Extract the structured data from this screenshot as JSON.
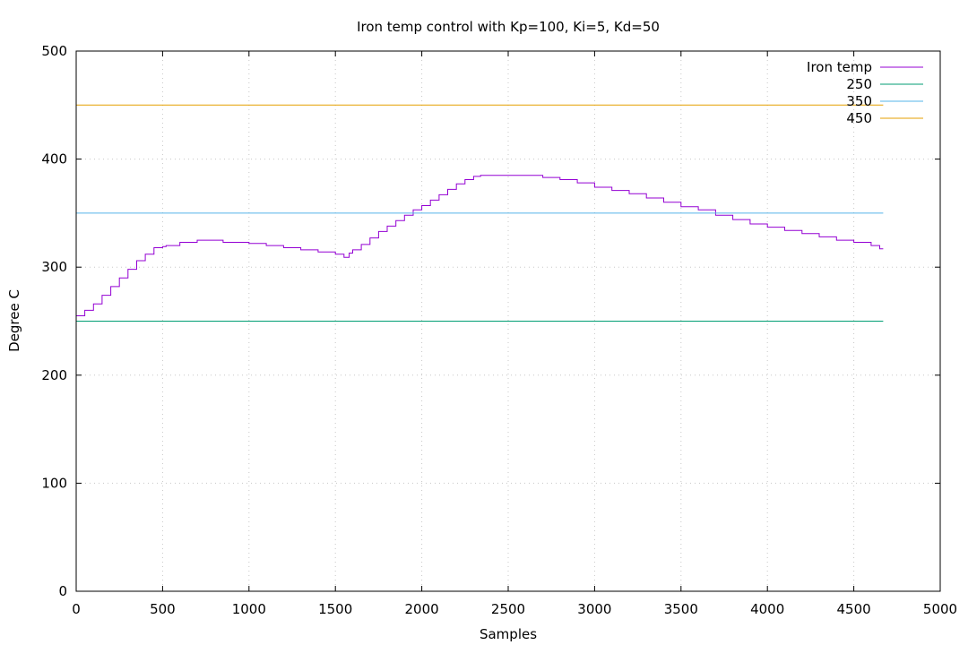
{
  "chart_data": {
    "type": "line",
    "title": "Iron temp control with Kp=100, Ki=5, Kd=50",
    "xlabel": "Samples",
    "ylabel": "Degree C",
    "xlim": [
      0,
      5000
    ],
    "ylim": [
      0,
      500
    ],
    "x_ticks": [
      0,
      500,
      1000,
      1500,
      2000,
      2500,
      3000,
      3500,
      4000,
      4500,
      5000
    ],
    "y_ticks": [
      0,
      100,
      200,
      300,
      400,
      500
    ],
    "grid": true,
    "legend_position": "top-right",
    "series": [
      {
        "name": "Iron temp",
        "color": "#9400d3",
        "style": "step",
        "x": [
          0,
          50,
          100,
          150,
          200,
          250,
          300,
          350,
          400,
          450,
          500,
          520,
          540,
          600,
          700,
          850,
          1000,
          1100,
          1200,
          1300,
          1400,
          1500,
          1550,
          1580,
          1600,
          1650,
          1700,
          1750,
          1800,
          1850,
          1900,
          1950,
          2000,
          2050,
          2100,
          2150,
          2200,
          2250,
          2300,
          2340,
          2360,
          2400,
          2500,
          2600,
          2700,
          2800,
          2900,
          3000,
          3100,
          3200,
          3300,
          3400,
          3500,
          3600,
          3700,
          3800,
          3900,
          4000,
          4100,
          4200,
          4300,
          4400,
          4500,
          4600,
          4650,
          4670
        ],
        "values": [
          255,
          260,
          266,
          274,
          282,
          290,
          298,
          306,
          312,
          318,
          319,
          320,
          320,
          323,
          325,
          323,
          322,
          320,
          318,
          316,
          314,
          312,
          309,
          313,
          316,
          321,
          327,
          333,
          338,
          343,
          348,
          353,
          357,
          362,
          367,
          372,
          377,
          381,
          384,
          385,
          385,
          385,
          385,
          385,
          383,
          381,
          378,
          374,
          371,
          368,
          364,
          360,
          356,
          353,
          348,
          344,
          340,
          337,
          334,
          331,
          328,
          325,
          323,
          320,
          317,
          317
        ]
      },
      {
        "name": "250",
        "color": "#009e73",
        "x": [
          0,
          4670
        ],
        "values": [
          250,
          250
        ]
      },
      {
        "name": "350",
        "color": "#56b4e9",
        "x": [
          0,
          4670
        ],
        "values": [
          350,
          350
        ]
      },
      {
        "name": "450",
        "color": "#e69f00",
        "x": [
          0,
          4670
        ],
        "values": [
          450,
          450
        ]
      }
    ]
  }
}
